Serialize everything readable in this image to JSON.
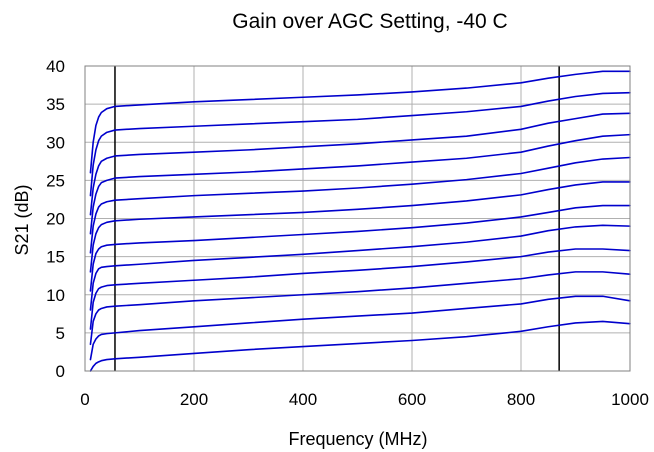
{
  "chart_data": {
    "type": "line",
    "title": "Gain over AGC Setting, -40 C",
    "xlabel": "Frequency (MHz)",
    "ylabel": "S21 (dB)",
    "xlim": [
      0,
      1000
    ],
    "ylim": [
      0,
      40
    ],
    "x_ticks": [
      0,
      200,
      400,
      600,
      800,
      1000
    ],
    "y_ticks": [
      0,
      5,
      10,
      15,
      20,
      25,
      30,
      35,
      40
    ],
    "grid": true,
    "legend": "none",
    "colors": {
      "series": "#0000cc",
      "marker_lines": "#000000",
      "grid": "#b0b0b0",
      "axis": "#808080"
    },
    "vertical_lines": [
      55,
      870
    ],
    "x": [
      10,
      15,
      20,
      25,
      30,
      40,
      55,
      100,
      200,
      300,
      400,
      500,
      600,
      700,
      800,
      850,
      900,
      950,
      1000
    ],
    "series": [
      {
        "values": [
          0,
          0.6,
          1.0,
          1.2,
          1.35,
          1.5,
          1.6,
          1.8,
          2.3,
          2.8,
          3.2,
          3.6,
          4.0,
          4.5,
          5.2,
          5.8,
          6.3,
          6.5,
          6.2
        ]
      },
      {
        "values": [
          1.5,
          3.5,
          4.2,
          4.6,
          4.8,
          4.9,
          5.0,
          5.3,
          5.8,
          6.3,
          6.8,
          7.2,
          7.6,
          8.2,
          8.8,
          9.4,
          9.8,
          9.8,
          9.2
        ]
      },
      {
        "values": [
          3.5,
          6.5,
          7.5,
          8.0,
          8.2,
          8.4,
          8.5,
          8.7,
          9.2,
          9.6,
          10.0,
          10.4,
          10.9,
          11.5,
          12.1,
          12.6,
          13.0,
          13.0,
          12.7
        ]
      },
      {
        "values": [
          5.5,
          9.0,
          10.2,
          10.8,
          11.0,
          11.2,
          11.3,
          11.5,
          11.9,
          12.3,
          12.8,
          13.2,
          13.7,
          14.3,
          15.0,
          15.6,
          16.0,
          16.0,
          15.8
        ]
      },
      {
        "values": [
          8.0,
          11.5,
          12.8,
          13.4,
          13.6,
          13.7,
          13.8,
          14.0,
          14.5,
          14.9,
          15.3,
          15.8,
          16.3,
          16.9,
          17.7,
          18.4,
          18.9,
          19.1,
          19.0
        ]
      },
      {
        "values": [
          10.5,
          14.0,
          15.4,
          16.0,
          16.3,
          16.5,
          16.6,
          16.8,
          17.1,
          17.5,
          17.9,
          18.3,
          18.8,
          19.4,
          20.2,
          20.8,
          21.4,
          21.7,
          21.7
        ]
      },
      {
        "values": [
          13.0,
          16.5,
          18.0,
          18.8,
          19.2,
          19.5,
          19.7,
          19.9,
          20.2,
          20.5,
          20.8,
          21.2,
          21.7,
          22.3,
          23.1,
          23.8,
          24.4,
          24.8,
          24.8
        ]
      },
      {
        "values": [
          15.5,
          19.0,
          20.6,
          21.5,
          21.9,
          22.2,
          22.4,
          22.6,
          23.0,
          23.3,
          23.6,
          24.0,
          24.5,
          25.1,
          25.9,
          26.6,
          27.3,
          27.8,
          28.0
        ]
      },
      {
        "values": [
          18.0,
          21.5,
          23.2,
          24.2,
          24.7,
          25.0,
          25.3,
          25.5,
          25.8,
          26.1,
          26.5,
          26.9,
          27.4,
          27.9,
          28.7,
          29.5,
          30.2,
          30.8,
          31.0
        ]
      },
      {
        "values": [
          20.5,
          24.0,
          25.8,
          26.9,
          27.5,
          27.9,
          28.2,
          28.4,
          28.7,
          29.0,
          29.4,
          29.8,
          30.3,
          30.8,
          31.7,
          32.5,
          33.1,
          33.7,
          33.8
        ]
      },
      {
        "values": [
          23.0,
          27.0,
          29.0,
          30.2,
          30.8,
          31.3,
          31.6,
          31.8,
          32.1,
          32.4,
          32.7,
          33.0,
          33.5,
          34.0,
          34.7,
          35.4,
          36.0,
          36.4,
          36.5
        ]
      },
      {
        "values": [
          26.0,
          30.0,
          32.2,
          33.3,
          33.9,
          34.4,
          34.7,
          34.9,
          35.3,
          35.6,
          35.9,
          36.2,
          36.6,
          37.1,
          37.8,
          38.4,
          38.9,
          39.3,
          39.3
        ]
      }
    ]
  }
}
